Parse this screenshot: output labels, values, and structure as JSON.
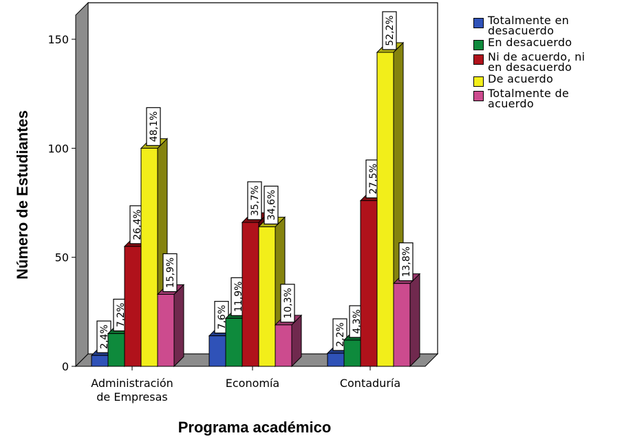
{
  "chart_data": {
    "type": "bar",
    "xlabel": "Programa académico",
    "ylabel": "Número de Estudiantes",
    "ylim": [
      0,
      150
    ],
    "yticks": [
      0,
      50,
      100,
      150
    ],
    "categories": [
      "Administración\nde Empresas",
      "Economía",
      "Contaduría"
    ],
    "legend_position": "right",
    "series": [
      {
        "name": "Totalmente en\ndesacuerdo",
        "color": "#2f52b8",
        "values": [
          5,
          14,
          6
        ],
        "labels": [
          "2,4%",
          "7,6%",
          "2,2%"
        ]
      },
      {
        "name": "En desacuerdo",
        "color": "#0e8a3c",
        "values": [
          15,
          22,
          12
        ],
        "labels": [
          "7,2%",
          "11,9%",
          "4,3%"
        ]
      },
      {
        "name": "Ni de acuerdo, ni\nen desacuerdo",
        "color": "#b0121b",
        "values": [
          55,
          66,
          76
        ],
        "labels": [
          "26,4%",
          "35,7%",
          "27,5%"
        ]
      },
      {
        "name": "De acuerdo",
        "color": "#f2ee1a",
        "values": [
          100,
          64,
          144
        ],
        "labels": [
          "48,1%",
          "34,6%",
          "52,2%"
        ]
      },
      {
        "name": "Totalmente de\nacuerdo",
        "color": "#cc4b8e",
        "values": [
          33,
          19,
          38
        ],
        "labels": [
          "15,9%",
          "10,3%",
          "13,8%"
        ]
      }
    ]
  }
}
